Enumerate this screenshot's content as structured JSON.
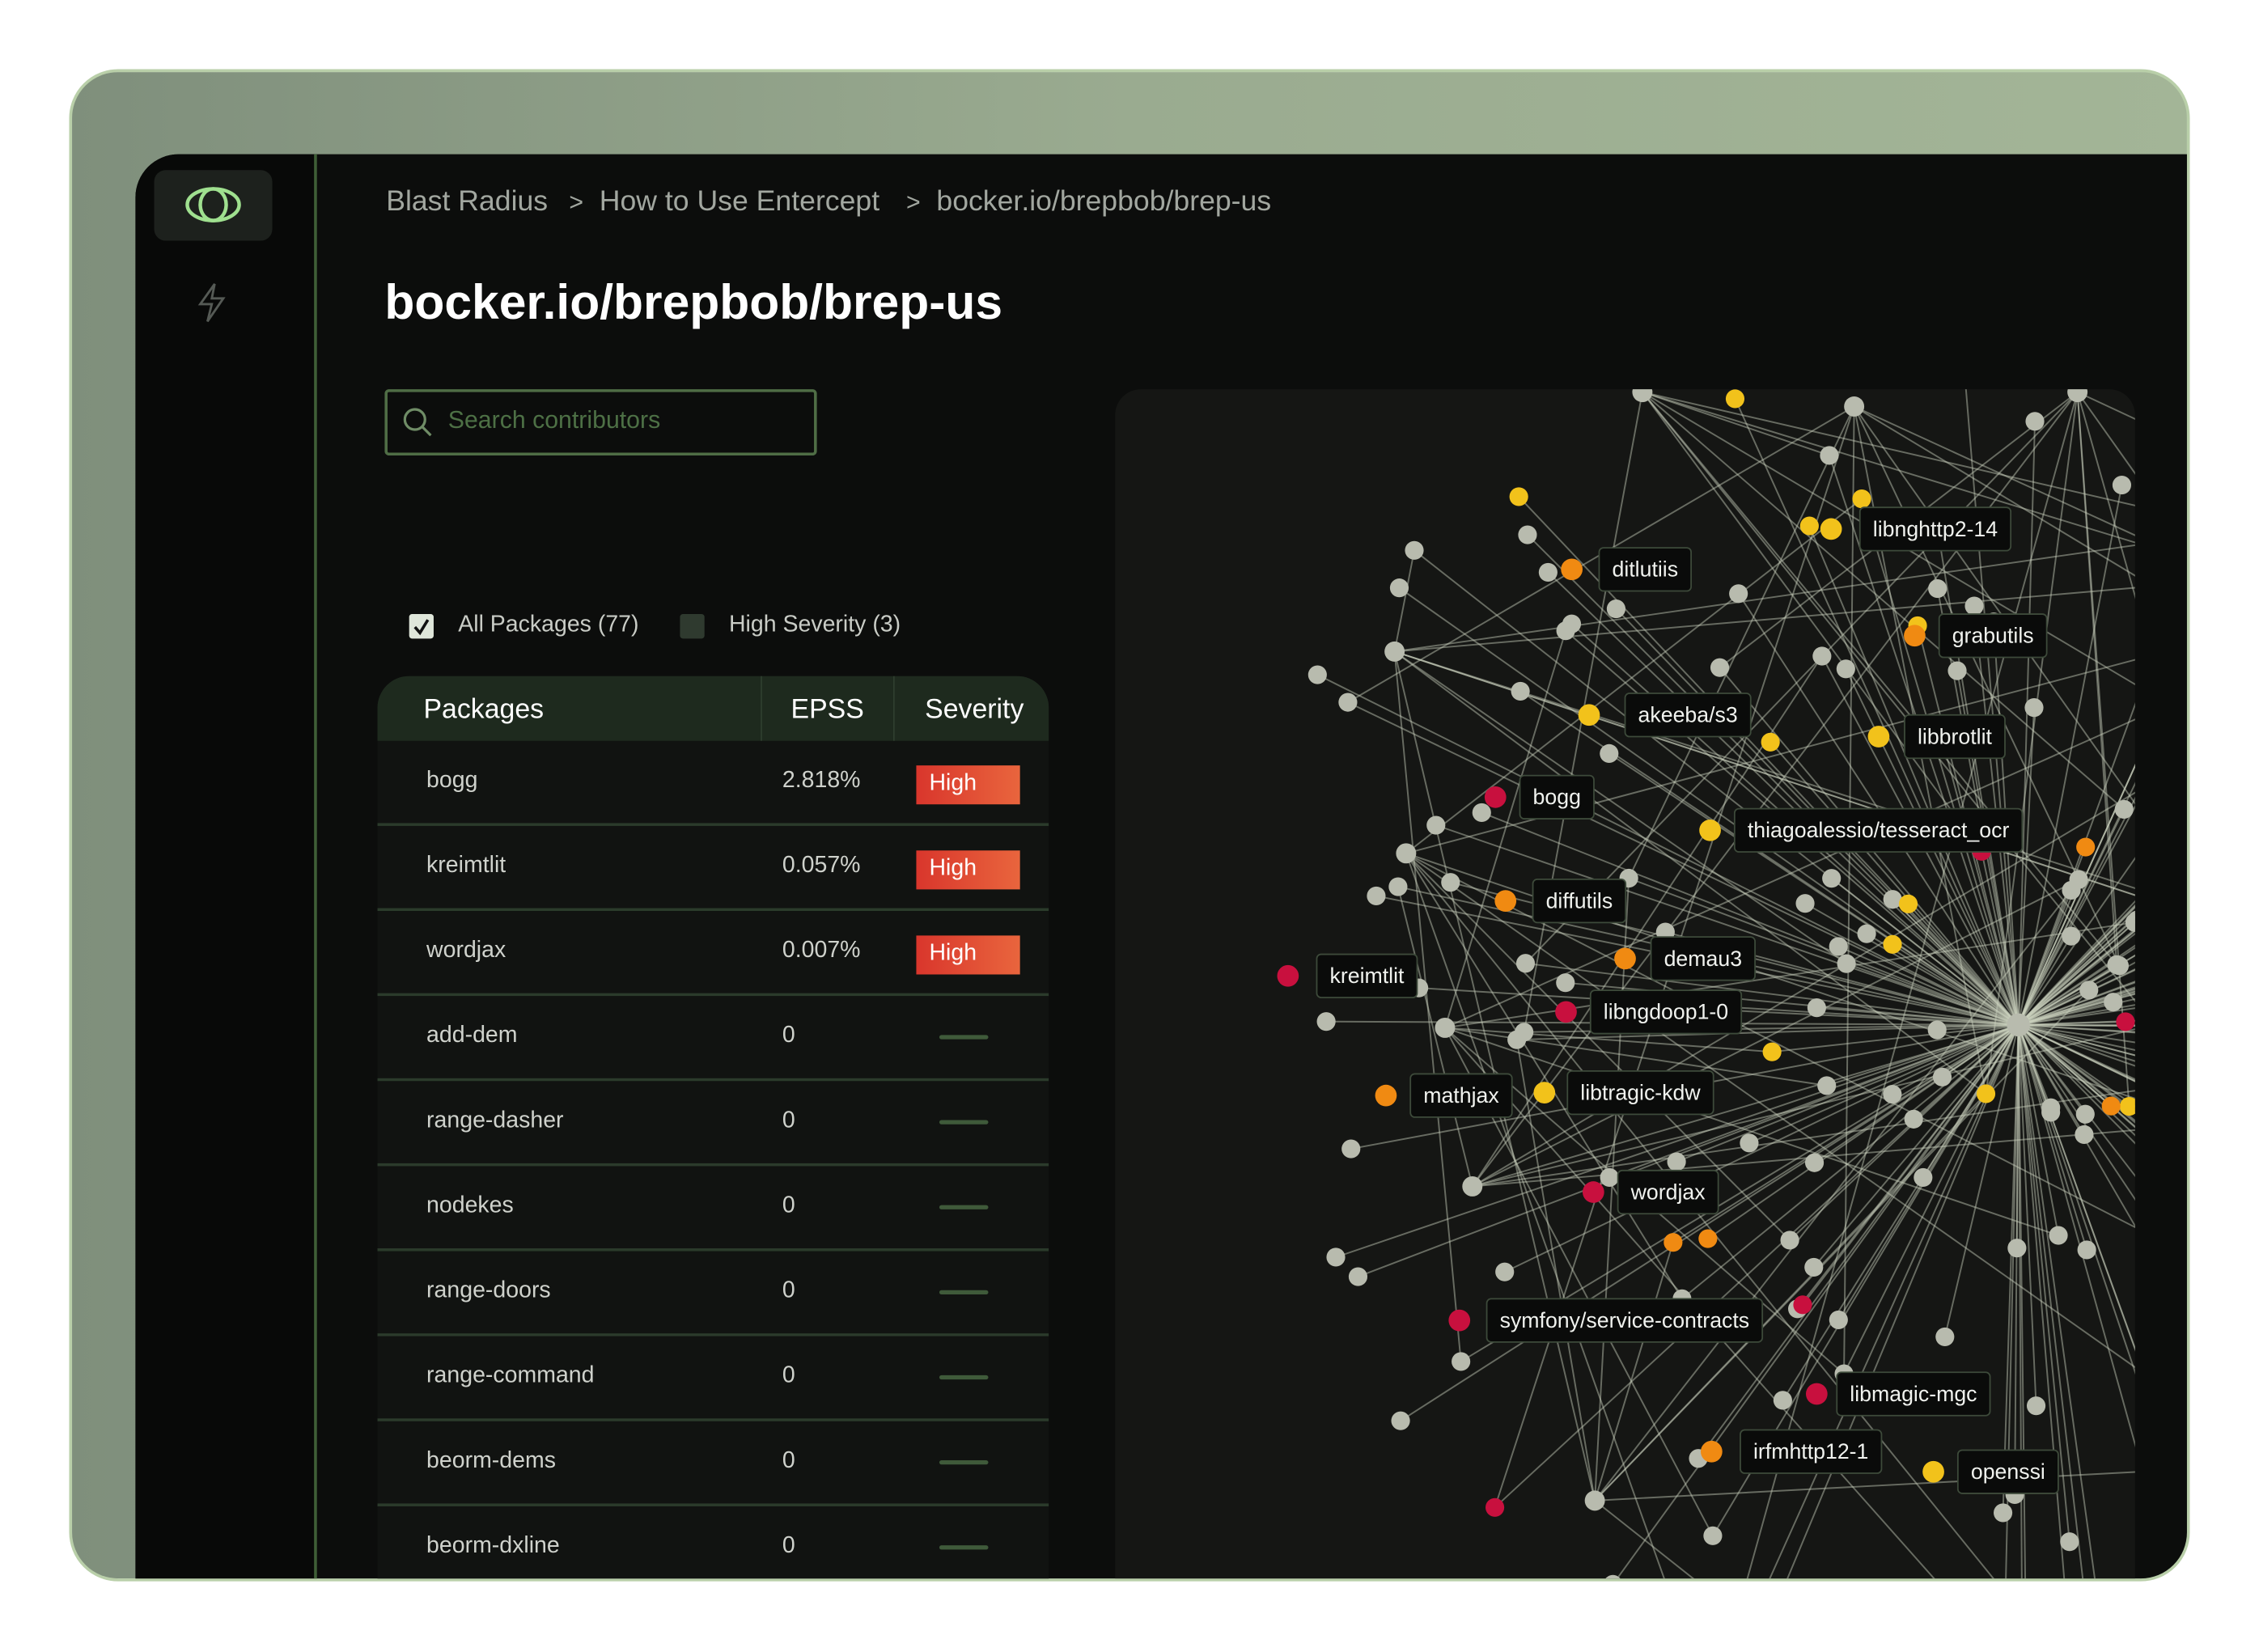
{
  "breadcrumb": {
    "items": [
      "Blast Radius",
      "How to Use Entercept",
      "bocker.io/brepbob/brep-us"
    ],
    "separator": ">"
  },
  "title": "bocker.io/brepbob/brep-us",
  "search": {
    "placeholder": "Search contributors"
  },
  "filters": [
    {
      "label": "All Packages (77)",
      "checked": true
    },
    {
      "label": "High Severity (3)",
      "checked": false
    }
  ],
  "table": {
    "headers": [
      "Packages",
      "EPSS",
      "Severity"
    ],
    "rows": [
      [
        "bogg",
        "2.818%",
        "High"
      ],
      [
        "kreimtlit",
        "0.057%",
        "High"
      ],
      [
        "wordjax",
        "0.007%",
        "High"
      ],
      [
        "add-dem",
        "0",
        null
      ],
      [
        "range-dasher",
        "0",
        null
      ],
      [
        "nodekes",
        "0",
        null
      ],
      [
        "range-doors",
        "0",
        null
      ],
      [
        "range-command",
        "0",
        null
      ],
      [
        "beorm-dems",
        "0",
        null
      ],
      [
        "beorm-dxline",
        "0",
        null
      ]
    ]
  },
  "graph": {
    "labels": [
      "libnghttp2-14",
      "ditlutiis",
      "grabutils",
      "akeeba/s3",
      "libbrotlit",
      "bogg",
      "thiagoalessio/tesseract_ocr",
      "diffutils",
      "demau3",
      "kreimtlit",
      "libngdoop1-0",
      "mathjax",
      "libtragic-kdw",
      "wordjax",
      "symfony/service-contracts",
      "libmagic-mgc",
      "irfmhttp12-1",
      "openssi"
    ]
  }
}
